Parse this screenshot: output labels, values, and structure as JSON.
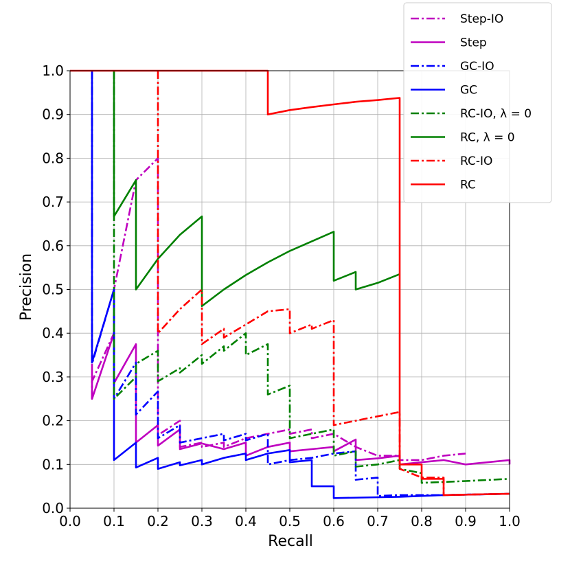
{
  "chart_data": {
    "type": "line",
    "xlabel": "Recall",
    "ylabel": "Precision",
    "xlim": [
      0.0,
      1.0
    ],
    "ylim": [
      0.0,
      1.0
    ],
    "xticks": [
      "0.0",
      "0.1",
      "0.2",
      "0.3",
      "0.4",
      "0.5",
      "0.6",
      "0.7",
      "0.8",
      "0.9",
      "1.0"
    ],
    "yticks": [
      "0.0",
      "0.1",
      "0.2",
      "0.3",
      "0.4",
      "0.5",
      "0.6",
      "0.7",
      "0.8",
      "0.9",
      "1.0"
    ],
    "grid": true,
    "legend_position": "top-right",
    "series": [
      {
        "name": "Step-IO",
        "color": "#bf00bf",
        "dash": "dashdot",
        "points": [
          [
            0.05,
            0.25
          ],
          [
            0.05,
            0.29
          ],
          [
            0.1,
            0.4
          ],
          [
            0.1,
            0.5
          ],
          [
            0.15,
            0.75
          ],
          [
            0.2,
            0.8
          ],
          [
            0.2,
            0.167
          ],
          [
            0.25,
            0.2
          ],
          [
            0.25,
            0.14
          ],
          [
            0.3,
            0.15
          ],
          [
            0.3,
            0.14
          ],
          [
            0.35,
            0.15
          ],
          [
            0.35,
            0.14
          ],
          [
            0.4,
            0.16
          ],
          [
            0.45,
            0.17
          ],
          [
            0.5,
            0.18
          ],
          [
            0.5,
            0.17
          ],
          [
            0.55,
            0.18
          ],
          [
            0.55,
            0.16
          ],
          [
            0.6,
            0.17
          ],
          [
            0.65,
            0.14
          ],
          [
            0.7,
            0.12
          ],
          [
            0.75,
            0.12
          ],
          [
            0.75,
            0.11
          ],
          [
            0.8,
            0.11
          ],
          [
            0.85,
            0.12
          ],
          [
            0.9,
            0.125
          ]
        ]
      },
      {
        "name": "Step",
        "color": "#bf00bf",
        "dash": "solid",
        "points": [
          [
            0.05,
            0.33
          ],
          [
            0.05,
            0.25
          ],
          [
            0.1,
            0.4
          ],
          [
            0.1,
            0.286
          ],
          [
            0.15,
            0.375
          ],
          [
            0.15,
            0.15
          ],
          [
            0.2,
            0.19
          ],
          [
            0.2,
            0.143
          ],
          [
            0.25,
            0.18
          ],
          [
            0.25,
            0.135
          ],
          [
            0.3,
            0.148
          ],
          [
            0.35,
            0.135
          ],
          [
            0.4,
            0.15
          ],
          [
            0.4,
            0.12
          ],
          [
            0.45,
            0.14
          ],
          [
            0.5,
            0.15
          ],
          [
            0.5,
            0.13
          ],
          [
            0.55,
            0.135
          ],
          [
            0.6,
            0.14
          ],
          [
            0.6,
            0.13
          ],
          [
            0.65,
            0.157
          ],
          [
            0.65,
            0.11
          ],
          [
            0.7,
            0.114
          ],
          [
            0.75,
            0.12
          ],
          [
            0.75,
            0.1
          ],
          [
            0.8,
            0.105
          ],
          [
            0.85,
            0.11
          ],
          [
            0.9,
            0.1
          ],
          [
            1.0,
            0.11
          ],
          [
            1.0,
            0.1
          ]
        ]
      },
      {
        "name": "GC-IO",
        "color": "#0000ff",
        "dash": "dashdot",
        "points": [
          [
            0.05,
            1.0
          ],
          [
            0.05,
            0.33
          ],
          [
            0.1,
            0.5
          ],
          [
            0.1,
            0.25
          ],
          [
            0.15,
            0.333
          ],
          [
            0.15,
            0.214
          ],
          [
            0.2,
            0.267
          ],
          [
            0.2,
            0.16
          ],
          [
            0.25,
            0.19
          ],
          [
            0.25,
            0.15
          ],
          [
            0.3,
            0.16
          ],
          [
            0.35,
            0.17
          ],
          [
            0.35,
            0.155
          ],
          [
            0.4,
            0.17
          ],
          [
            0.4,
            0.155
          ],
          [
            0.45,
            0.17
          ],
          [
            0.45,
            0.1
          ],
          [
            0.5,
            0.11
          ],
          [
            0.55,
            0.115
          ],
          [
            0.6,
            0.125
          ],
          [
            0.65,
            0.13
          ],
          [
            0.65,
            0.065
          ],
          [
            0.7,
            0.07
          ],
          [
            0.7,
            0.028
          ],
          [
            0.75,
            0.03
          ],
          [
            0.85,
            0.03
          ],
          [
            1.0,
            0.033
          ]
        ]
      },
      {
        "name": "GC",
        "color": "#0000ff",
        "dash": "solid",
        "points": [
          [
            0.05,
            1.0
          ],
          [
            0.05,
            0.333
          ],
          [
            0.1,
            0.5
          ],
          [
            0.1,
            0.11
          ],
          [
            0.15,
            0.15
          ],
          [
            0.15,
            0.093
          ],
          [
            0.2,
            0.115
          ],
          [
            0.2,
            0.09
          ],
          [
            0.25,
            0.105
          ],
          [
            0.25,
            0.098
          ],
          [
            0.3,
            0.11
          ],
          [
            0.3,
            0.1
          ],
          [
            0.35,
            0.115
          ],
          [
            0.4,
            0.125
          ],
          [
            0.4,
            0.11
          ],
          [
            0.45,
            0.125
          ],
          [
            0.5,
            0.133
          ],
          [
            0.5,
            0.105
          ],
          [
            0.55,
            0.11
          ],
          [
            0.55,
            0.05
          ],
          [
            0.6,
            0.05
          ],
          [
            0.6,
            0.023
          ],
          [
            0.75,
            0.026
          ],
          [
            0.8,
            0.028
          ],
          [
            0.85,
            0.03
          ],
          [
            1.0,
            0.033
          ]
        ]
      },
      {
        "name": "RC-IO, λ = 0",
        "color": "#008000",
        "dash": "dashdot",
        "points": [
          [
            0.1,
            1.0
          ],
          [
            0.1,
            0.25
          ],
          [
            0.15,
            0.3
          ],
          [
            0.15,
            0.33
          ],
          [
            0.2,
            0.36
          ],
          [
            0.2,
            0.29
          ],
          [
            0.25,
            0.32
          ],
          [
            0.25,
            0.31
          ],
          [
            0.3,
            0.35
          ],
          [
            0.3,
            0.33
          ],
          [
            0.35,
            0.37
          ],
          [
            0.35,
            0.36
          ],
          [
            0.4,
            0.4
          ],
          [
            0.4,
            0.35
          ],
          [
            0.45,
            0.375
          ],
          [
            0.45,
            0.26
          ],
          [
            0.5,
            0.28
          ],
          [
            0.5,
            0.16
          ],
          [
            0.55,
            0.17
          ],
          [
            0.6,
            0.18
          ],
          [
            0.6,
            0.12
          ],
          [
            0.65,
            0.13
          ],
          [
            0.65,
            0.095
          ],
          [
            0.7,
            0.1
          ],
          [
            0.75,
            0.11
          ],
          [
            0.75,
            0.09
          ],
          [
            0.8,
            0.08
          ],
          [
            0.8,
            0.058
          ],
          [
            0.85,
            0.06
          ],
          [
            0.9,
            0.062
          ],
          [
            1.0,
            0.067
          ]
        ]
      },
      {
        "name": "RC, λ = 0",
        "color": "#008000",
        "dash": "solid",
        "points": [
          [
            0.1,
            1.0
          ],
          [
            0.1,
            0.667
          ],
          [
            0.15,
            0.75
          ],
          [
            0.15,
            0.5
          ],
          [
            0.2,
            0.57
          ],
          [
            0.25,
            0.625
          ],
          [
            0.3,
            0.667
          ],
          [
            0.3,
            0.462
          ],
          [
            0.35,
            0.5
          ],
          [
            0.4,
            0.533
          ],
          [
            0.45,
            0.562
          ],
          [
            0.5,
            0.588
          ],
          [
            0.55,
            0.61
          ],
          [
            0.6,
            0.632
          ],
          [
            0.6,
            0.52
          ],
          [
            0.65,
            0.54
          ],
          [
            0.65,
            0.5
          ],
          [
            0.7,
            0.515
          ],
          [
            0.75,
            0.535
          ]
        ]
      },
      {
        "name": "RC-IO",
        "color": "#ff0000",
        "dash": "dashdot",
        "points": [
          [
            0.2,
            1.0
          ],
          [
            0.2,
            0.4
          ],
          [
            0.25,
            0.455
          ],
          [
            0.3,
            0.5
          ],
          [
            0.3,
            0.375
          ],
          [
            0.35,
            0.41
          ],
          [
            0.35,
            0.39
          ],
          [
            0.4,
            0.42
          ],
          [
            0.45,
            0.45
          ],
          [
            0.5,
            0.455
          ],
          [
            0.5,
            0.4
          ],
          [
            0.55,
            0.42
          ],
          [
            0.55,
            0.41
          ],
          [
            0.6,
            0.43
          ],
          [
            0.6,
            0.19
          ],
          [
            0.65,
            0.2
          ],
          [
            0.7,
            0.21
          ],
          [
            0.75,
            0.22
          ],
          [
            0.75,
            0.09
          ],
          [
            0.8,
            0.07
          ],
          [
            0.85,
            0.07
          ],
          [
            0.85,
            0.03
          ],
          [
            1.0,
            0.033
          ]
        ]
      },
      {
        "name": "RC",
        "color": "#ff0000",
        "dash": "solid",
        "points": [
          [
            0.0,
            1.0
          ],
          [
            0.45,
            1.0
          ],
          [
            0.45,
            0.9
          ],
          [
            0.5,
            0.91
          ],
          [
            0.55,
            0.917
          ],
          [
            0.6,
            0.923
          ],
          [
            0.65,
            0.929
          ],
          [
            0.7,
            0.933
          ],
          [
            0.75,
            0.938
          ],
          [
            0.75,
            0.1
          ],
          [
            0.8,
            0.1
          ],
          [
            0.8,
            0.067
          ],
          [
            0.85,
            0.067
          ],
          [
            0.85,
            0.03
          ],
          [
            1.0,
            0.033
          ]
        ]
      }
    ]
  }
}
